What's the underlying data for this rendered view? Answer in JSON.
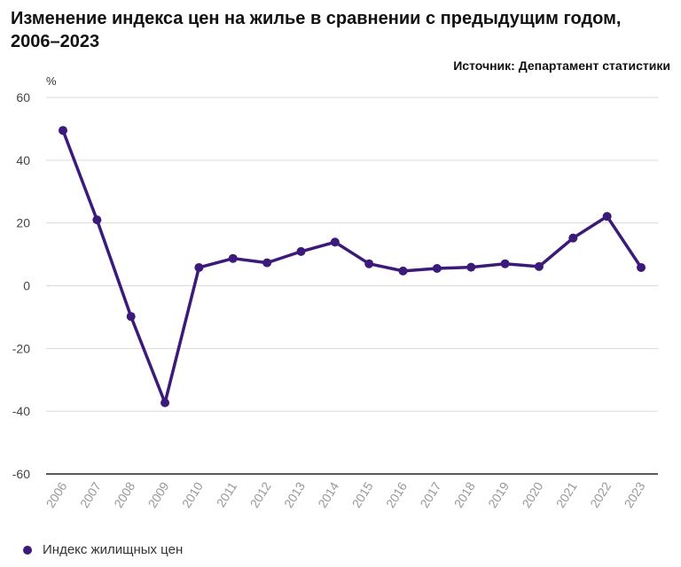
{
  "title": "Изменение индекса цен на жилье в сравнении с предыдущим годом, 2006–2023",
  "source": "Источник: Департамент статистики",
  "unit": "%",
  "legend": {
    "label": "Индекс жилищных цен"
  },
  "colors": {
    "series": "#3b1a7a",
    "grid": "#d9d9d9",
    "axis": "#222222",
    "tick": "#999999"
  },
  "chart_data": {
    "type": "line",
    "title": "Изменение индекса цен на жилье в сравнении с предыдущим годом, 2006–2023",
    "xlabel": "",
    "ylabel": "%",
    "ylim": [
      -60,
      60
    ],
    "yticks": [
      60,
      40,
      20,
      0,
      -20,
      -40,
      -60
    ],
    "categories": [
      "2006",
      "2007",
      "2008",
      "2009",
      "2010",
      "2011",
      "2012",
      "2013",
      "2014",
      "2015",
      "2016",
      "2017",
      "2018",
      "2019",
      "2020",
      "2021",
      "2022",
      "2023"
    ],
    "series": [
      {
        "name": "Индекс жилищных цен",
        "values": [
          49.5,
          21.0,
          -9.8,
          -37.3,
          5.8,
          8.7,
          7.3,
          10.9,
          13.9,
          7.0,
          4.7,
          5.5,
          5.9,
          7.0,
          6.1,
          15.2,
          22.1,
          5.8
        ]
      }
    ]
  }
}
